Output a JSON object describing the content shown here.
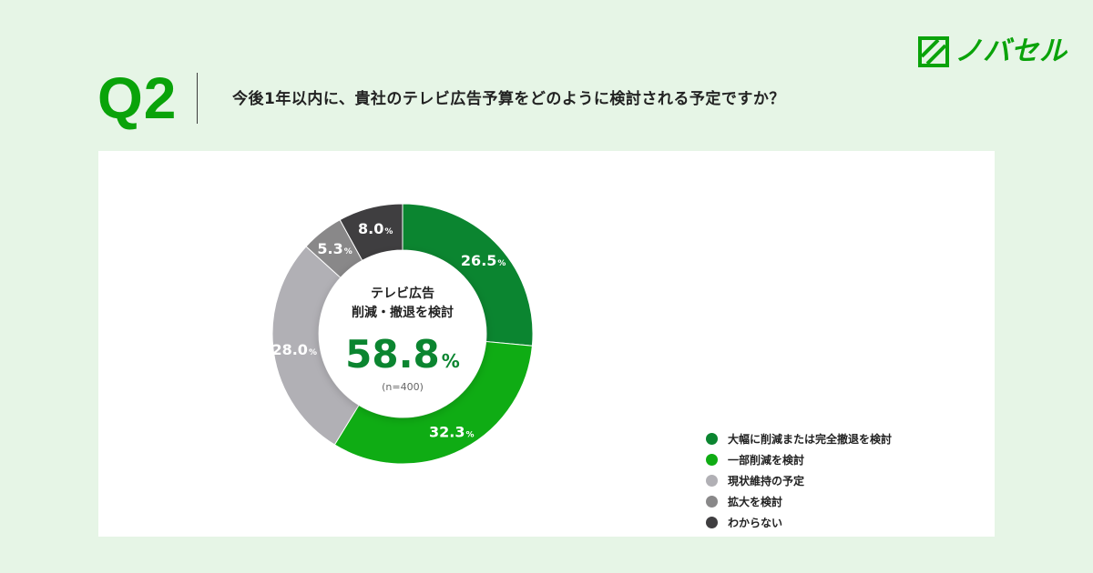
{
  "header": {
    "q_number": "Q2",
    "question": "今後1年以内に、貴社のテレビ広告予算をどのように検討される予定ですか？",
    "logo_text": "ノバセル"
  },
  "center": {
    "line1": "テレビ広告",
    "line2": "削減・撤退を検討",
    "value": "58.8",
    "unit": "%",
    "n": "(n=400)"
  },
  "chart_data": {
    "type": "pie",
    "donut": true,
    "unit": "%",
    "categories": [
      "大幅に削減または完全撤退を検討",
      "一部削減を検討",
      "現状維持の予定",
      "拡大を検討",
      "わからない"
    ],
    "values": [
      26.5,
      32.3,
      28.0,
      5.3,
      8.0
    ],
    "colors": [
      "#0b8530",
      "#0fac14",
      "#b1b0b5",
      "#898889",
      "#3f3e40"
    ],
    "legend": "right"
  },
  "colors": {
    "accent": "#0aa30a",
    "center_value": "#0b8530",
    "background": "#e6f5e6"
  }
}
